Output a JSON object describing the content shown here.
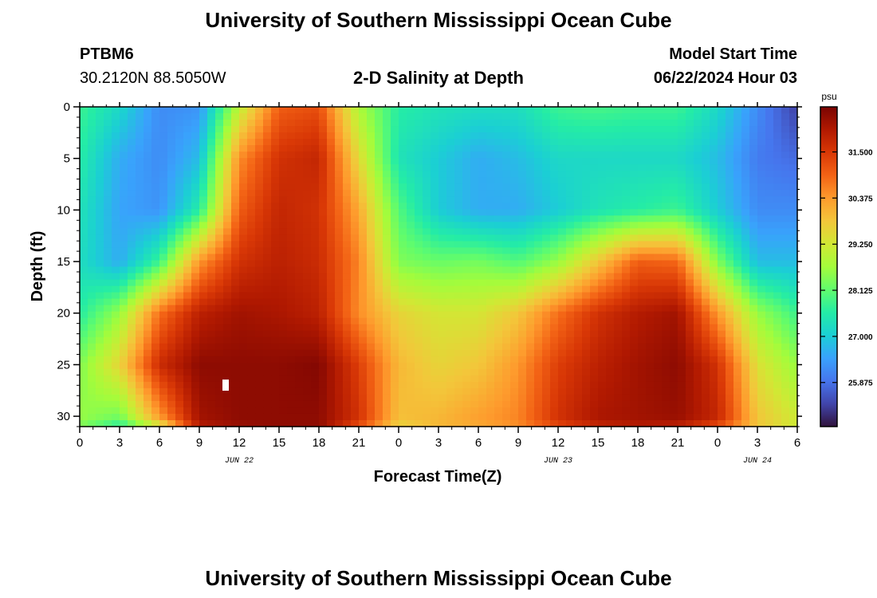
{
  "page": {
    "title_top": "University of Southern Mississippi Ocean Cube",
    "title_bottom": "University of Southern Mississippi Ocean Cube",
    "station": "PTBM6",
    "coords": "30.2120N  88.5050W",
    "chart_title": "2-D Salinity at Depth",
    "model_start_label": "Model Start Time",
    "model_start_value": "06/22/2024 Hour 03"
  },
  "chart_data": {
    "type": "heatmap",
    "title": "2-D Salinity at Depth",
    "xlabel": "Forecast Time(Z)",
    "ylabel": "Depth (ft)",
    "x_range_hours": [
      0,
      54
    ],
    "y_range_ft": [
      0,
      31
    ],
    "x_tick_hours": [
      0,
      3,
      6,
      9,
      12,
      15,
      18,
      21,
      24,
      27,
      30,
      33,
      36,
      39,
      42,
      45,
      48,
      51,
      54
    ],
    "x_tick_labels": [
      "0",
      "3",
      "6",
      "9",
      "12",
      "15",
      "18",
      "21",
      "0",
      "3",
      "6",
      "9",
      "12",
      "15",
      "18",
      "21",
      "0",
      "3",
      "6"
    ],
    "date_labels": [
      {
        "hour": 12,
        "label": "JUN 22"
      },
      {
        "hour": 36,
        "label": "JUN 23"
      },
      {
        "hour": 51,
        "label": "JUN 24"
      }
    ],
    "y_ticks": [
      0,
      5,
      10,
      15,
      20,
      25,
      30
    ],
    "colorbar": {
      "unit": "psu",
      "min": 24.8,
      "max": 32.6,
      "tick_values": [
        31.5,
        30.375,
        29.25,
        28.125,
        27.0,
        25.875
      ],
      "tick_labels": [
        "31.500",
        "30.375",
        "29.250",
        "28.125",
        "27.000",
        "25.875"
      ],
      "colors": [
        "#30123b",
        "#4145ab",
        "#4675ed",
        "#39a2fc",
        "#1bcfd4",
        "#24eca6",
        "#61fc6c",
        "#a4fc3b",
        "#d1e834",
        "#f3c63a",
        "#fe9b2d",
        "#f36315",
        "#d93806",
        "#b11901",
        "#7a0402"
      ]
    },
    "time_hours": [
      0,
      3,
      6,
      9,
      12,
      15,
      18,
      21,
      24,
      27,
      30,
      33,
      36,
      39,
      42,
      45,
      48,
      51,
      54
    ],
    "depth_ft": [
      0,
      5,
      10,
      15,
      20,
      25,
      30,
      31
    ],
    "salinity_psu": [
      [
        27.8,
        27.2,
        26.2,
        26.3,
        29.0,
        31.0,
        31.2,
        28.8,
        27.6,
        27.4,
        27.3,
        27.3,
        27.8,
        27.9,
        27.8,
        27.8,
        27.2,
        26.2,
        25.3
      ],
      [
        27.6,
        26.6,
        26.2,
        26.8,
        30.5,
        31.6,
        31.8,
        29.5,
        27.4,
        27.0,
        26.6,
        26.8,
        27.2,
        27.2,
        27.2,
        27.2,
        26.8,
        26.0,
        25.8
      ],
      [
        27.4,
        26.5,
        26.3,
        27.6,
        31.0,
        31.8,
        31.6,
        30.2,
        28.0,
        27.0,
        26.6,
        26.6,
        27.0,
        27.4,
        27.6,
        27.8,
        27.0,
        26.2,
        26.2
      ],
      [
        27.3,
        26.6,
        27.8,
        30.4,
        31.6,
        31.9,
        31.7,
        30.6,
        28.4,
        28.2,
        28.3,
        28.0,
        28.6,
        29.8,
        31.0,
        30.9,
        28.4,
        26.8,
        26.8
      ],
      [
        27.6,
        28.6,
        30.8,
        31.9,
        32.2,
        32.1,
        31.9,
        30.5,
        29.6,
        29.3,
        29.3,
        29.8,
        30.8,
        31.6,
        32.0,
        32.2,
        30.4,
        28.6,
        27.8
      ],
      [
        28.4,
        29.6,
        31.7,
        32.4,
        32.4,
        32.4,
        32.5,
        31.4,
        30.0,
        29.6,
        29.8,
        30.4,
        31.4,
        31.9,
        32.2,
        32.4,
        31.6,
        29.4,
        28.6
      ],
      [
        28.6,
        28.3,
        30.4,
        32.2,
        32.4,
        32.4,
        32.4,
        31.6,
        29.9,
        30.0,
        30.3,
        30.6,
        31.6,
        32.1,
        32.2,
        32.3,
        31.8,
        29.8,
        29.2
      ],
      [
        28.4,
        27.6,
        29.2,
        32.0,
        32.3,
        32.4,
        32.4,
        31.2,
        29.6,
        30.0,
        30.2,
        30.5,
        31.3,
        31.8,
        32.0,
        31.9,
        31.2,
        29.8,
        29.2
      ]
    ]
  }
}
